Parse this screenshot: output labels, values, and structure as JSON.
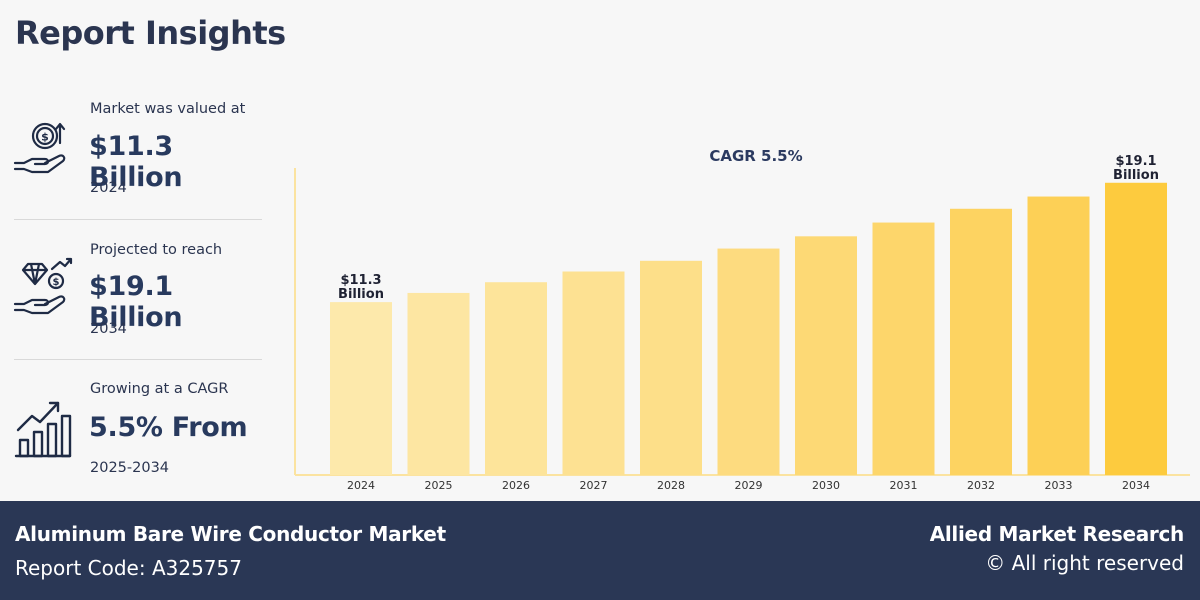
{
  "header": {
    "title": "Report Insights"
  },
  "insights": [
    {
      "label": "Market was valued at",
      "value": "$11.3 Billion",
      "year": "2024",
      "icon": "money-hand-icon"
    },
    {
      "label": "Projected to reach",
      "value": "$19.1 Billion",
      "year": "2034",
      "icon": "diamond-dollar-hand-icon"
    },
    {
      "label": "Growing at a CAGR",
      "value": "5.5% From",
      "year": "2025-2034",
      "icon": "growth-bar-chart-icon"
    }
  ],
  "chart_data": {
    "type": "bar",
    "title": "CAGR 5.5%",
    "categories": [
      "2024",
      "2025",
      "2026",
      "2027",
      "2028",
      "2029",
      "2030",
      "2031",
      "2032",
      "2033",
      "2034"
    ],
    "values": [
      11.3,
      11.9,
      12.6,
      13.3,
      14.0,
      14.8,
      15.6,
      16.5,
      17.4,
      18.2,
      19.1
    ],
    "unit": "Billion",
    "annotations": [
      {
        "category": "2024",
        "line1": "$11.3",
        "line2": "Billion"
      },
      {
        "category": "2034",
        "line1": "$19.1",
        "line2": "Billion"
      }
    ],
    "colors": [
      "#fde9ab",
      "#fde6a2",
      "#fde49a",
      "#fde192",
      "#fddf89",
      "#fddb7f",
      "#fdd975",
      "#fdd66b",
      "#fdd361",
      "#fdd056",
      "#fdcb3e"
    ],
    "xlabel": "",
    "ylabel": "",
    "ylim": [
      0,
      20
    ]
  },
  "footer": {
    "market": "Aluminum Bare Wire Conductor Market",
    "report_code": "Report Code: A325757",
    "company": "Allied Market Research",
    "rights": "© All right reserved"
  }
}
